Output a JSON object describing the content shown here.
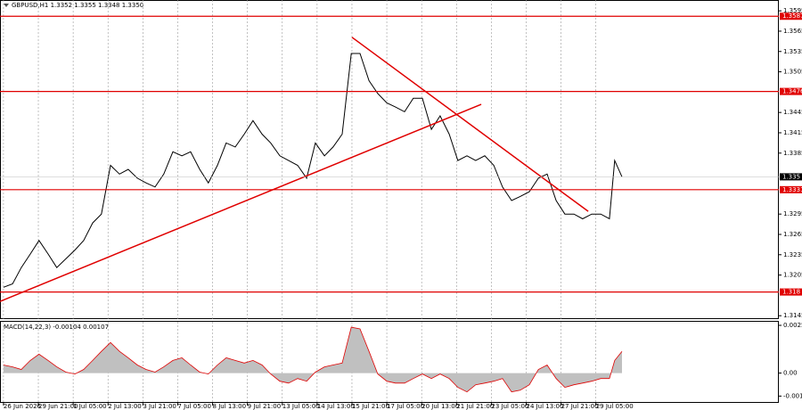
{
  "chart_data": [
    {
      "type": "line",
      "title": "GBPUSD,H1  1.3352 1.3355 1.3348 1.3350",
      "color": "#000000",
      "grid": true,
      "x": [
        0,
        0.26,
        0.51,
        0.77,
        1.02,
        1.28,
        1.53,
        1.79,
        2.05,
        2.3,
        2.56,
        2.81,
        3.07,
        3.33,
        3.58,
        3.84,
        4.09,
        4.35,
        4.6,
        4.86,
        5.12,
        5.37,
        5.63,
        5.88,
        6.14,
        6.39,
        6.65,
        6.91,
        7.16,
        7.42,
        7.67,
        7.93,
        8.18,
        8.44,
        8.7,
        8.95,
        9.21,
        9.46,
        9.72,
        9.98,
        10.23,
        10.49,
        10.74,
        11,
        11.25,
        11.51,
        11.76,
        12.02,
        12.28,
        12.53,
        12.79,
        13.04,
        13.3,
        13.55,
        13.81,
        14.07,
        14.32,
        14.58,
        14.83,
        15.09,
        15.35,
        15.6,
        15.86,
        16.11,
        16.37,
        16.62,
        16.88,
        17.14,
        17.39,
        17.54,
        17.75
      ],
      "values": [
        1.3187,
        1.3192,
        1.3216,
        1.3236,
        1.3256,
        1.3236,
        1.3216,
        1.3229,
        1.3242,
        1.3256,
        1.3282,
        1.3295,
        1.3367,
        1.3354,
        1.3361,
        1.3348,
        1.3341,
        1.3335,
        1.3354,
        1.3387,
        1.3381,
        1.3387,
        1.3361,
        1.3341,
        1.3367,
        1.34,
        1.3394,
        1.3413,
        1.3433,
        1.3413,
        1.34,
        1.3381,
        1.3374,
        1.3367,
        1.3348,
        1.34,
        1.3381,
        1.3394,
        1.3413,
        1.3532,
        1.3532,
        1.3492,
        1.3473,
        1.3459,
        1.3453,
        1.3446,
        1.3466,
        1.3466,
        1.342,
        1.344,
        1.3413,
        1.3374,
        1.3381,
        1.3374,
        1.3381,
        1.3367,
        1.3335,
        1.3315,
        1.3321,
        1.3328,
        1.3348,
        1.3354,
        1.3315,
        1.3295,
        1.3295,
        1.3288,
        1.3295,
        1.3295,
        1.3288,
        1.3374,
        1.335
      ],
      "xlim": [
        -0.1,
        22.25
      ],
      "ylim": [
        1.314,
        1.3611
      ],
      "yticks": [
        1.3595,
        1.3565,
        1.3535,
        1.3505,
        1.3445,
        1.3415,
        1.3385,
        1.3295,
        1.3265,
        1.3235,
        1.3205,
        1.3145
      ],
      "xticks": [
        {
          "value": 0,
          "label": "26 Jun 2026"
        },
        {
          "value": 1,
          "label": "29 Jun 21:00"
        },
        {
          "value": 2,
          "label": "1 Jul 05:00"
        },
        {
          "value": 3,
          "label": "2 Jul 13:00"
        },
        {
          "value": 4,
          "label": "3 Jul 21:00"
        },
        {
          "value": 5,
          "label": "7 Jul 05:00"
        },
        {
          "value": 6,
          "label": "8 Jul 13:00"
        },
        {
          "value": 7,
          "label": "9 Jul 21:00"
        },
        {
          "value": 8,
          "label": "13 Jul 05:00"
        },
        {
          "value": 9,
          "label": "14 Jul 13:00"
        },
        {
          "value": 10,
          "label": "15 Jul 21:00"
        },
        {
          "value": 11,
          "label": "17 Jul 05:00"
        },
        {
          "value": 12,
          "label": "20 Jul 13:00"
        },
        {
          "value": 13,
          "label": "21 Jul 21:00"
        },
        {
          "value": 14,
          "label": "23 Jul 05:00"
        },
        {
          "value": 15,
          "label": "24 Jul 13:00"
        },
        {
          "value": 16,
          "label": "27 Jul 21:00"
        },
        {
          "value": 17,
          "label": "29 Jul 05:00"
        }
      ],
      "levels": [
        1.3587,
        1.3476,
        1.3331,
        1.318
      ],
      "level_color": "#e00000",
      "trend_lines": [
        {
          "x": [
            -0.1,
            13.71
          ],
          "values": [
            1.3166,
            1.3457
          ]
        },
        {
          "x": [
            10,
            16.78
          ],
          "values": [
            1.3556,
            1.3299
          ]
        }
      ],
      "last_price": 1.335
    },
    {
      "type": "area",
      "title": "MACD(14,22,3) -0.00104 0.00107",
      "color": "#c0c0c0",
      "line_color": "#e00000",
      "x": [
        0,
        0.26,
        0.51,
        0.77,
        1.02,
        1.28,
        1.53,
        1.79,
        2.05,
        2.3,
        2.56,
        2.81,
        3.07,
        3.33,
        3.58,
        3.84,
        4.09,
        4.35,
        4.6,
        4.86,
        5.12,
        5.37,
        5.63,
        5.88,
        6.14,
        6.39,
        6.65,
        6.91,
        7.16,
        7.42,
        7.67,
        7.93,
        8.18,
        8.44,
        8.7,
        8.95,
        9.21,
        9.46,
        9.72,
        9.98,
        10.23,
        10.49,
        10.74,
        11,
        11.25,
        11.51,
        11.76,
        12.02,
        12.28,
        12.53,
        12.79,
        13.04,
        13.3,
        13.55,
        13.81,
        14.07,
        14.32,
        14.58,
        14.83,
        15.09,
        15.35,
        15.6,
        15.86,
        16.11,
        16.37,
        16.62,
        16.88,
        17.14,
        17.39,
        17.54,
        17.75
      ],
      "values": [
        0.00043,
        0.00033,
        0.00019,
        0.00067,
        0.001,
        0.00067,
        0.00033,
        5e-05,
        -5e-05,
        0.00019,
        0.00067,
        0.00115,
        0.00162,
        0.00115,
        0.00081,
        0.00043,
        0.00019,
        5e-05,
        0.00033,
        0.00067,
        0.00081,
        0.00043,
        5e-05,
        -5e-05,
        0.00043,
        0.00081,
        0.00067,
        0.00053,
        0.00067,
        0.00043,
        -5e-05,
        -0.00043,
        -0.00053,
        -0.00029,
        -0.00043,
        5e-05,
        0.00033,
        0.00043,
        0.00053,
        0.00243,
        0.00234,
        0.00115,
        -5e-05,
        -0.00043,
        -0.00053,
        -0.00053,
        -0.00029,
        -5e-05,
        -0.00029,
        -5e-05,
        -0.00029,
        -0.00076,
        -0.001,
        -0.00062,
        -0.00053,
        -0.00043,
        -0.00029,
        -0.001,
        -0.00091,
        -0.00062,
        0.00019,
        0.00043,
        -0.00029,
        -0.00076,
        -0.00062,
        -0.00053,
        -0.00043,
        -0.00029,
        -0.00029,
        0.00067,
        0.00115
      ],
      "xlim": [
        -0.1,
        22.25
      ],
      "ylim": [
        -0.00158,
        0.00272
      ],
      "yticks": [
        0.00253,
        {
          "value": 0,
          "label": "0.00"
        },
        -0.00122
      ]
    }
  ]
}
